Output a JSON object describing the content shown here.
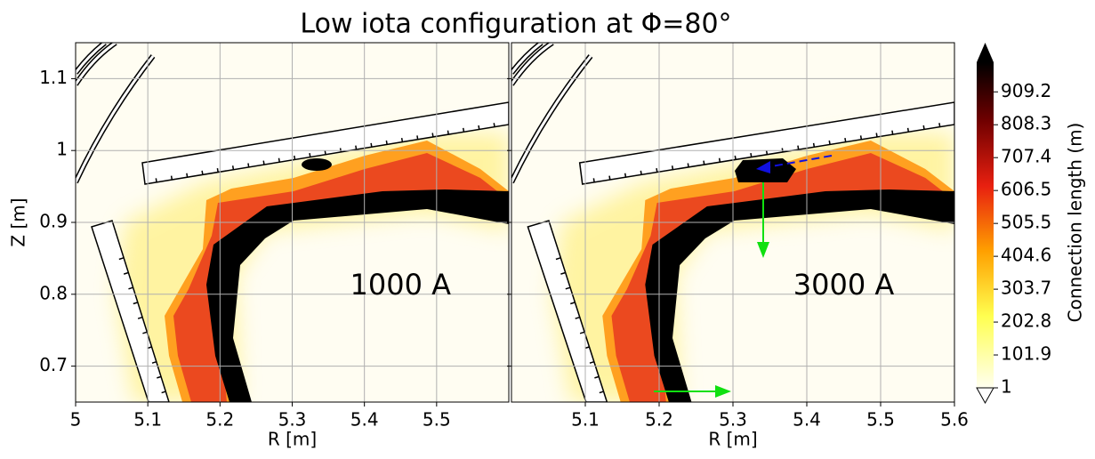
{
  "title": "Low iota configuration at Φ=80°",
  "colorbar": {
    "label": "Connection length (m)",
    "lim": [
      1,
      1000
    ],
    "extend": "both",
    "ticks": [
      1.0,
      101.9,
      202.8,
      303.7,
      404.6,
      505.5,
      606.5,
      707.4,
      808.3,
      909.2
    ]
  },
  "chart_data": [
    {
      "type": "contour",
      "annotation": "1000 A",
      "xlabel": "R [m]",
      "ylabel": "Z [m]",
      "xlim": [
        5.0,
        5.6
      ],
      "ylim": [
        0.65,
        1.15
      ],
      "xticks": [
        5.0,
        5.1,
        5.2,
        5.3,
        5.4,
        5.5
      ],
      "yticks": [
        0.7,
        0.8,
        0.9,
        1.0,
        1.1
      ],
      "grid": true
    },
    {
      "type": "contour",
      "annotation": "3000 A",
      "xlabel": "R [m]",
      "xlim": [
        5.0,
        5.6
      ],
      "ylim": [
        0.65,
        1.15
      ],
      "xticks": [
        5.1,
        5.2,
        5.3,
        5.4,
        5.5,
        5.6
      ],
      "grid": true
    }
  ]
}
